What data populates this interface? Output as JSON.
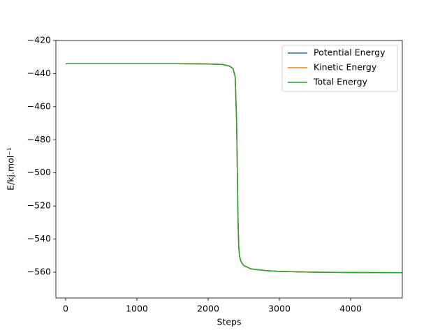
{
  "chart_data": {
    "type": "line",
    "xlabel": "Steps",
    "ylabel": "E/kj.mol⁻¹",
    "x": [
      0,
      500,
      1000,
      1500,
      2000,
      2200,
      2300,
      2350,
      2380,
      2400,
      2410,
      2420,
      2430,
      2440,
      2460,
      2500,
      2600,
      2800,
      3000,
      3500,
      4000,
      4725
    ],
    "series": [
      {
        "name": "Potential Energy",
        "color": "#1f77b4",
        "values": [
          -434,
          -434,
          -434,
          -434,
          -434.2,
          -434.5,
          -435.5,
          -437,
          -442,
          -470,
          -500,
          -530,
          -545,
          -550,
          -553.5,
          -556,
          -558,
          -559,
          -559.5,
          -560,
          -560.2,
          -560.3
        ]
      },
      {
        "name": "Kinetic Energy",
        "color": "#ff7f0e",
        "values": [
          -434,
          -434,
          -434,
          -434,
          -434.2,
          -434.5,
          -435.5,
          -437,
          -442,
          -470,
          -500,
          -530,
          -545,
          -550,
          -553.5,
          -556,
          -558,
          -559,
          -559.5,
          -560,
          -560.2,
          -560.3
        ]
      },
      {
        "name": "Total Energy",
        "color": "#2ca02c",
        "values": [
          -434,
          -434,
          -434,
          -434,
          -434.2,
          -434.5,
          -435.5,
          -437,
          -442,
          -470,
          -500,
          -530,
          -545,
          -550,
          -553.5,
          -556,
          -558,
          -559,
          -559.5,
          -560,
          -560.2,
          -560.3
        ]
      }
    ],
    "xlim": [
      -137,
      4725
    ],
    "ylim": [
      -575.6,
      -420
    ],
    "xticks": [
      0,
      1000,
      2000,
      3000,
      4000
    ],
    "yticks": [
      {
        "value": -420,
        "label": "−420"
      },
      {
        "value": -440,
        "label": "−440"
      },
      {
        "value": -460,
        "label": "−460"
      },
      {
        "value": -480,
        "label": "−480"
      },
      {
        "value": -500,
        "label": "−500"
      },
      {
        "value": -520,
        "label": "−520"
      },
      {
        "value": -540,
        "label": "−540"
      },
      {
        "value": -560,
        "label": "−560"
      }
    ],
    "legend": "upper right",
    "grid": false
  }
}
